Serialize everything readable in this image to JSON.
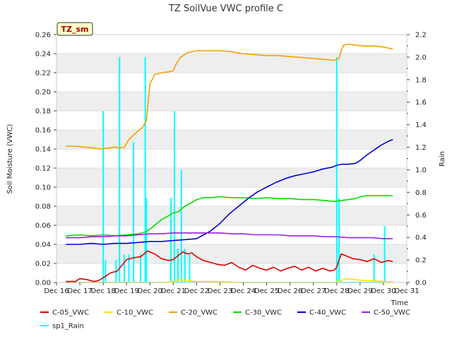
{
  "chart_data": {
    "type": "line",
    "title": "TZ SoilVue VWC profile C",
    "badge": "TZ_sm",
    "xlabel": "Time",
    "ylabel": "Soil Moisture (VWC)",
    "y2label": "Rain",
    "x_ticks": [
      "Dec 16",
      "Dec 17",
      "Dec 18",
      "Dec 19",
      "Dec 20",
      "Dec 21",
      "Dec 22",
      "Dec 23",
      "Dec 24",
      "Dec 25",
      "Dec 26",
      "Dec 27",
      "Dec 28",
      "Dec 29",
      "Dec 30",
      "Dec 31"
    ],
    "x_unit": "day of December",
    "xlim": [
      16,
      31
    ],
    "ylim": [
      0,
      0.26
    ],
    "y_ticks": [
      "0.00",
      "0.02",
      "0.04",
      "0.06",
      "0.08",
      "0.10",
      "0.12",
      "0.14",
      "0.16",
      "0.18",
      "0.20",
      "0.22",
      "0.24",
      "0.26"
    ],
    "y2lim": [
      0,
      2.2
    ],
    "y2_ticks": [
      "0.0",
      "0.2",
      "0.4",
      "0.6",
      "0.8",
      "1.0",
      "1.2",
      "1.4",
      "1.6",
      "1.8",
      "2.0",
      "2.2"
    ],
    "grid": "horizontal alternating bands",
    "legend_placement": "bottom",
    "series": [
      {
        "name": "C-05_VWC",
        "color": "#dd0000",
        "axis": "left",
        "x": [
          16.4,
          16.8,
          17.0,
          17.3,
          17.6,
          17.8,
          18.0,
          18.3,
          18.6,
          18.8,
          19.0,
          19.3,
          19.6,
          19.9,
          20.2,
          20.5,
          20.8,
          21.0,
          21.2,
          21.4,
          21.6,
          21.8,
          22.0,
          22.3,
          22.6,
          22.9,
          23.2,
          23.5,
          23.8,
          24.1,
          24.4,
          24.7,
          25.0,
          25.3,
          25.6,
          25.9,
          26.2,
          26.5,
          26.8,
          27.1,
          27.4,
          27.7,
          27.9,
          28.0,
          28.1,
          28.2,
          28.4,
          28.7,
          29.0,
          29.3,
          29.6,
          29.9,
          30.2,
          30.4
        ],
        "y": [
          0.001,
          0.001,
          0.004,
          0.003,
          0.001,
          0.002,
          0.005,
          0.01,
          0.012,
          0.018,
          0.024,
          0.026,
          0.027,
          0.033,
          0.03,
          0.025,
          0.023,
          0.024,
          0.028,
          0.032,
          0.03,
          0.031,
          0.027,
          0.023,
          0.021,
          0.019,
          0.018,
          0.021,
          0.016,
          0.013,
          0.018,
          0.015,
          0.013,
          0.016,
          0.012,
          0.015,
          0.017,
          0.013,
          0.016,
          0.012,
          0.015,
          0.012,
          0.013,
          0.016,
          0.024,
          0.03,
          0.028,
          0.025,
          0.024,
          0.022,
          0.025,
          0.021,
          0.023,
          0.022
        ]
      },
      {
        "name": "C-10_VWC",
        "color": "#f5e600",
        "axis": "left",
        "x": [
          16.4,
          17.0,
          18.0,
          18.5,
          19.0,
          19.5,
          20.0,
          20.5,
          21.0,
          21.3,
          21.6,
          22.0,
          23.0,
          24.0,
          25.0,
          26.0,
          27.0,
          27.9,
          28.2,
          28.4,
          28.8,
          29.2,
          29.6,
          30.0,
          30.4
        ],
        "y": [
          0.0,
          0.0,
          0.0,
          0.0,
          0.0,
          0.0,
          0.0,
          0.0,
          0.001,
          0.003,
          0.002,
          0.001,
          0.001,
          0.0,
          0.0,
          0.0,
          0.0,
          0.0,
          0.002,
          0.004,
          0.003,
          0.002,
          0.002,
          0.001,
          0.001
        ]
      },
      {
        "name": "C-20_VWC",
        "color": "#f5a000",
        "axis": "left",
        "x": [
          16.4,
          16.8,
          17.2,
          17.6,
          17.9,
          18.2,
          18.5,
          18.7,
          18.9,
          19.1,
          19.4,
          19.7,
          19.85,
          20.0,
          20.2,
          20.5,
          20.8,
          21.0,
          21.1,
          21.3,
          21.6,
          22.0,
          22.5,
          23.0,
          23.5,
          24.0,
          24.5,
          25.0,
          25.5,
          26.0,
          26.5,
          27.0,
          27.5,
          27.9,
          28.1,
          28.2,
          28.3,
          28.5,
          28.8,
          29.2,
          29.6,
          30.0,
          30.4
        ],
        "y": [
          0.143,
          0.143,
          0.142,
          0.141,
          0.14,
          0.141,
          0.142,
          0.141,
          0.142,
          0.15,
          0.157,
          0.163,
          0.17,
          0.208,
          0.218,
          0.22,
          0.221,
          0.222,
          0.228,
          0.236,
          0.241,
          0.243,
          0.243,
          0.243,
          0.242,
          0.24,
          0.239,
          0.238,
          0.238,
          0.237,
          0.236,
          0.235,
          0.234,
          0.233,
          0.235,
          0.244,
          0.249,
          0.25,
          0.249,
          0.248,
          0.248,
          0.247,
          0.245
        ]
      },
      {
        "name": "C-30_VWC",
        "color": "#00dd00",
        "axis": "left",
        "x": [
          16.4,
          17.0,
          17.5,
          18.0,
          18.5,
          19.0,
          19.5,
          19.8,
          20.0,
          20.2,
          20.5,
          20.8,
          21.0,
          21.2,
          21.5,
          21.8,
          22.0,
          22.3,
          22.6,
          23.0,
          23.5,
          24.0,
          24.5,
          25.0,
          25.5,
          26.0,
          26.5,
          27.0,
          27.5,
          27.9,
          28.2,
          28.5,
          28.8,
          29.0,
          29.3,
          29.6,
          30.0,
          30.4
        ],
        "y": [
          0.049,
          0.05,
          0.049,
          0.05,
          0.049,
          0.05,
          0.051,
          0.053,
          0.056,
          0.06,
          0.066,
          0.07,
          0.073,
          0.074,
          0.08,
          0.084,
          0.087,
          0.089,
          0.089,
          0.09,
          0.089,
          0.089,
          0.088,
          0.089,
          0.088,
          0.088,
          0.087,
          0.087,
          0.086,
          0.085,
          0.086,
          0.087,
          0.088,
          0.09,
          0.091,
          0.091,
          0.091,
          0.091
        ]
      },
      {
        "name": "C-40_VWC",
        "color": "#0000dd",
        "axis": "left",
        "x": [
          16.4,
          17.0,
          17.5,
          18.0,
          18.5,
          19.0,
          19.5,
          20.0,
          20.5,
          21.0,
          21.5,
          22.0,
          22.3,
          22.6,
          23.0,
          23.4,
          23.8,
          24.2,
          24.6,
          25.0,
          25.4,
          25.8,
          26.2,
          26.6,
          27.0,
          27.4,
          27.8,
          28.0,
          28.2,
          28.5,
          28.8,
          29.0,
          29.3,
          29.6,
          29.9,
          30.2,
          30.4
        ],
        "y": [
          0.04,
          0.04,
          0.041,
          0.04,
          0.041,
          0.041,
          0.042,
          0.043,
          0.043,
          0.044,
          0.045,
          0.046,
          0.05,
          0.054,
          0.062,
          0.072,
          0.08,
          0.088,
          0.095,
          0.1,
          0.105,
          0.109,
          0.112,
          0.114,
          0.116,
          0.119,
          0.121,
          0.123,
          0.124,
          0.124,
          0.125,
          0.128,
          0.134,
          0.139,
          0.144,
          0.148,
          0.15
        ]
      },
      {
        "name": "C-50_VWC",
        "color": "#9922dd",
        "axis": "left",
        "x": [
          16.4,
          17.0,
          17.5,
          18.0,
          18.5,
          19.0,
          19.5,
          20.0,
          20.5,
          21.0,
          21.5,
          22.0,
          22.5,
          23.0,
          23.5,
          24.0,
          24.5,
          25.0,
          25.5,
          26.0,
          26.5,
          27.0,
          27.5,
          28.0,
          28.5,
          29.0,
          29.5,
          30.0,
          30.4
        ],
        "y": [
          0.047,
          0.047,
          0.048,
          0.048,
          0.049,
          0.049,
          0.05,
          0.051,
          0.051,
          0.052,
          0.052,
          0.052,
          0.052,
          0.052,
          0.051,
          0.051,
          0.05,
          0.05,
          0.05,
          0.049,
          0.049,
          0.049,
          0.048,
          0.048,
          0.047,
          0.047,
          0.047,
          0.046,
          0.046
        ]
      },
      {
        "name": "sp1_Rain",
        "color": "#00ffff",
        "axis": "right",
        "x": [
          16.4,
          17.9,
          18.0,
          18.05,
          18.1,
          18.4,
          18.55,
          18.65,
          18.7,
          18.75,
          18.9,
          19.0,
          19.1,
          19.25,
          19.3,
          19.5,
          19.6,
          19.75,
          19.8,
          19.85,
          19.9,
          19.95,
          20.1,
          20.5,
          20.8,
          20.9,
          21.0,
          21.05,
          21.1,
          21.2,
          21.25,
          21.35,
          21.4,
          21.5,
          21.6,
          21.7,
          21.8,
          22.0,
          24.0,
          26.0,
          27.9,
          28.0,
          28.05,
          28.1,
          28.2,
          28.3,
          29.0,
          29.5,
          29.6,
          29.7,
          30.0,
          30.05,
          30.1
        ],
        "y": [
          0.0,
          0.0,
          1.52,
          0.0,
          0.2,
          0.0,
          0.2,
          0.0,
          2.0,
          0.0,
          0.25,
          0.0,
          0.25,
          0.0,
          1.25,
          0.0,
          0.25,
          0.0,
          2.0,
          0.75,
          0.0,
          0.0,
          0.0,
          0.0,
          0.0,
          0.75,
          0.0,
          1.52,
          0.0,
          0.3,
          0.0,
          1.0,
          0.0,
          0.3,
          0.0,
          0.25,
          0.0,
          0.0,
          0.0,
          0.0,
          0.0,
          2.0,
          0.0,
          0.75,
          0.0,
          0.0,
          0.0,
          0.0,
          0.25,
          0.0,
          0.0,
          0.5,
          0.0
        ]
      }
    ]
  }
}
